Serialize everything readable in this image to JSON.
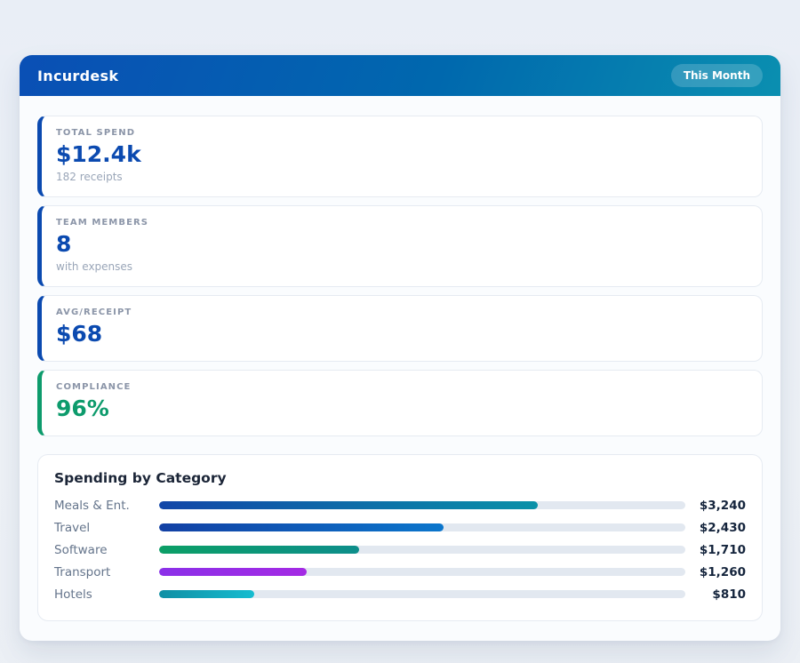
{
  "app": {
    "title": "Incurdesk",
    "period_badge": "This Month"
  },
  "theme": {
    "header_gradient_start": "#0a4fb5",
    "header_gradient_end": "#0a8fb0",
    "page_bg": "#edf1f6",
    "panel_bg": "#fafcfe",
    "accent_blue": "#0b4ab0",
    "accent_green": "#0d9b6c",
    "bar_track": "#e2e8f0"
  },
  "stats": [
    {
      "label": "TOTAL SPEND",
      "value": "$12.4k",
      "caption": "182 receipts",
      "accent": "#0b4ab0"
    },
    {
      "label": "TEAM MEMBERS",
      "value": "8",
      "caption": "with expenses",
      "accent": "#0b4ab0"
    },
    {
      "label": "AVG/RECEIPT",
      "value": "$68",
      "caption": "",
      "accent": "#0b4ab0"
    },
    {
      "label": "COMPLIANCE",
      "value": "96%",
      "caption": "",
      "accent": "#0d9b6c"
    }
  ],
  "chart_data": {
    "type": "bar",
    "orientation": "horizontal",
    "title": "Spending by Category",
    "categories": [
      "Meals & Ent.",
      "Travel",
      "Software",
      "Transport",
      "Hotels"
    ],
    "values": [
      3240,
      2430,
      1710,
      1260,
      810
    ],
    "value_labels": [
      "$3,240",
      "$2,430",
      "$1,710",
      "$1,260",
      "$810"
    ],
    "xlim": [
      0,
      4500
    ],
    "grid": false,
    "legend": false,
    "bar_gradients": [
      [
        "#1246a8",
        "#0991a8"
      ],
      [
        "#1240a4",
        "#0b76cc"
      ],
      [
        "#0c9f66",
        "#0d8e8b"
      ],
      [
        "#8b30e8",
        "#a42ae4"
      ],
      [
        "#0f8fa4",
        "#16bcd0"
      ]
    ]
  }
}
